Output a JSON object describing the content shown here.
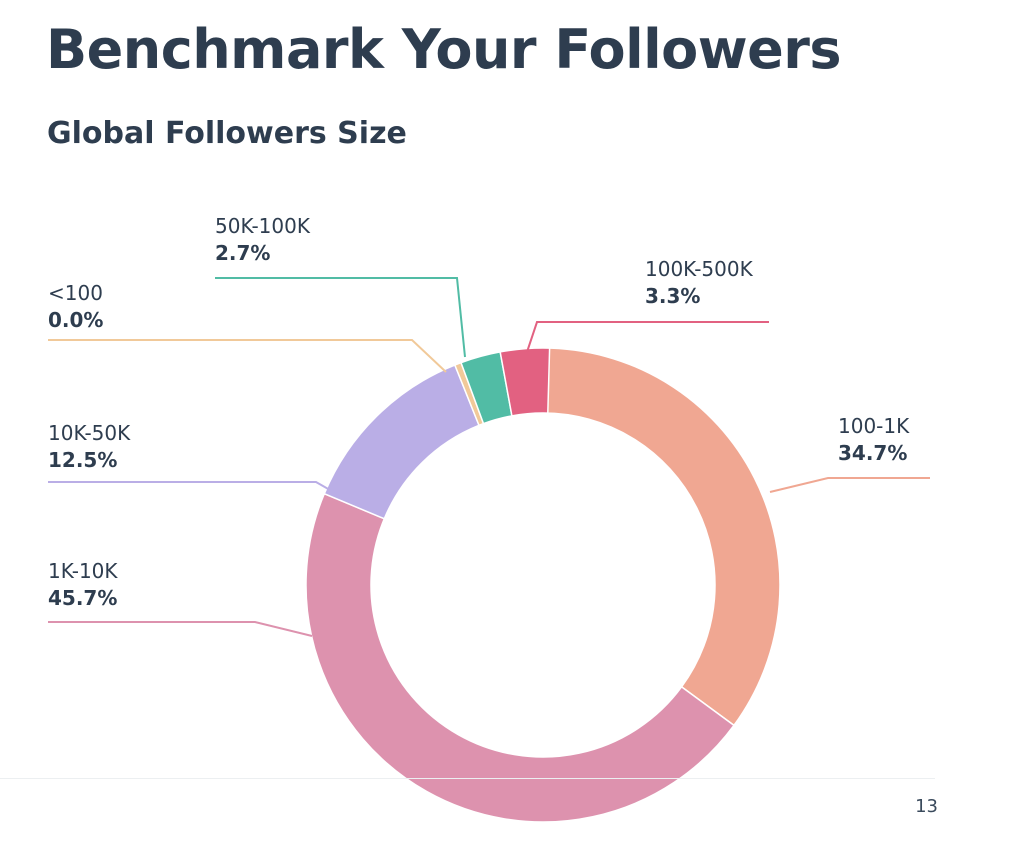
{
  "page": {
    "title": "Benchmark Your Followers",
    "page_number": "13"
  },
  "chart_data": {
    "type": "pie",
    "variant": "donut",
    "title": "Global Followers Size",
    "categories": [
      "100-1K",
      "1K-10K",
      "10K-50K",
      "<100",
      "50K-100K",
      "100K-500K"
    ],
    "values": [
      34.7,
      45.7,
      12.5,
      0.0,
      2.7,
      3.3
    ],
    "labels": [
      "34.7%",
      "45.7%",
      "12.5%",
      "0.0%",
      "2.7%",
      "3.3%"
    ],
    "colors": [
      "#f0a792",
      "#dd92ae",
      "#baaee6",
      "#f1c999",
      "#51bca5",
      "#e26181"
    ]
  }
}
